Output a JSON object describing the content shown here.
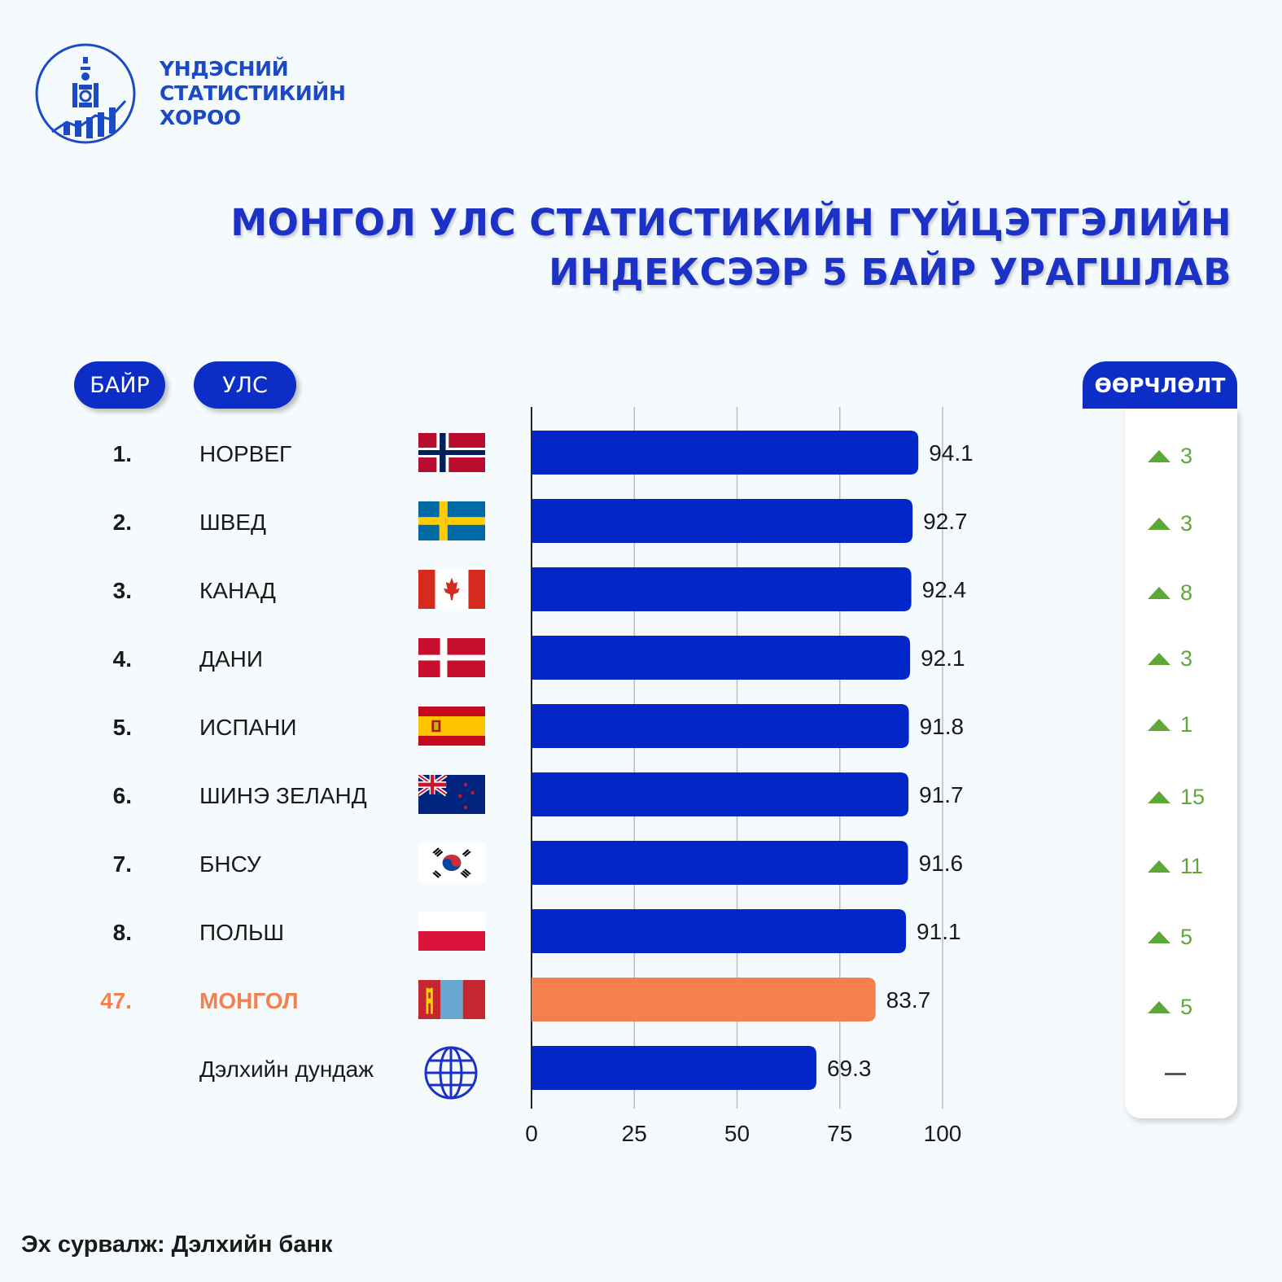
{
  "org": {
    "line1": "ҮНДЭСНИЙ",
    "line2": "СТАТИСТИКИЙН",
    "line3": "ХОРОО"
  },
  "title": {
    "line1": "МОНГОЛ УЛС СТАТИСТИКИЙН ГҮЙЦЭТГЭЛИЙН",
    "line2": "ИНДЕКСЭЭР 5 БАЙР УРАГШЛАВ"
  },
  "headers": {
    "rank": "БАЙР",
    "country": "УЛС",
    "change": "ӨӨРЧЛӨЛТ"
  },
  "colors": {
    "bar": "#0226c8",
    "highlight": "#f47f4f",
    "up": "#5ea83a",
    "title": "#1c32c6"
  },
  "rows": [
    {
      "rank": "1.",
      "country": "НОРВЕГ",
      "value_label": "94.1",
      "change": "3",
      "flag": "norway-flag-icon"
    },
    {
      "rank": "2.",
      "country": "ШВЕД",
      "value_label": "92.7",
      "change": "3",
      "flag": "sweden-flag-icon"
    },
    {
      "rank": "3.",
      "country": "КАНАД",
      "value_label": "92.4",
      "change": "8",
      "flag": "canada-flag-icon"
    },
    {
      "rank": "4.",
      "country": "ДАНИ",
      "value_label": "92.1",
      "change": "3",
      "flag": "denmark-flag-icon"
    },
    {
      "rank": "5.",
      "country": "ИСПАНИ",
      "value_label": "91.8",
      "change": "1",
      "flag": "spain-flag-icon"
    },
    {
      "rank": "6.",
      "country": "ШИНЭ ЗЕЛАНД",
      "value_label": "91.7",
      "change": "15",
      "flag": "new-zealand-flag-icon"
    },
    {
      "rank": "7.",
      "country": "БНСУ",
      "value_label": "91.6",
      "change": "11",
      "flag": "south-korea-flag-icon"
    },
    {
      "rank": "8.",
      "country": "ПОЛЬШ",
      "value_label": "91.1",
      "change": "5",
      "flag": "poland-flag-icon"
    },
    {
      "rank": "47.",
      "country": "МОНГОЛ",
      "value_label": "83.7",
      "change": "5",
      "flag": "mongolia-flag-icon"
    },
    {
      "rank": "",
      "country": "Дэлхийн дундаж",
      "value_label": "69.3",
      "change": "",
      "flag": "globe-icon"
    }
  ],
  "chart_data": {
    "type": "bar",
    "orientation": "horizontal",
    "categories": [
      "НОРВЕГ",
      "ШВЕД",
      "КАНАД",
      "ДАНИ",
      "ИСПАНИ",
      "ШИНЭ ЗЕЛАНД",
      "БНСУ",
      "ПОЛЬШ",
      "МОНГОЛ",
      "Дэлхийн дундаж"
    ],
    "values": [
      94.1,
      92.7,
      92.4,
      92.1,
      91.8,
      91.7,
      91.6,
      91.1,
      83.7,
      69.3
    ],
    "highlight_index": 8,
    "xlim": [
      0,
      100
    ],
    "xticks": [
      "0",
      "25",
      "50",
      "75",
      "100"
    ],
    "grid": true
  },
  "source": "Эх сурвалж: Дэлхийн банк"
}
